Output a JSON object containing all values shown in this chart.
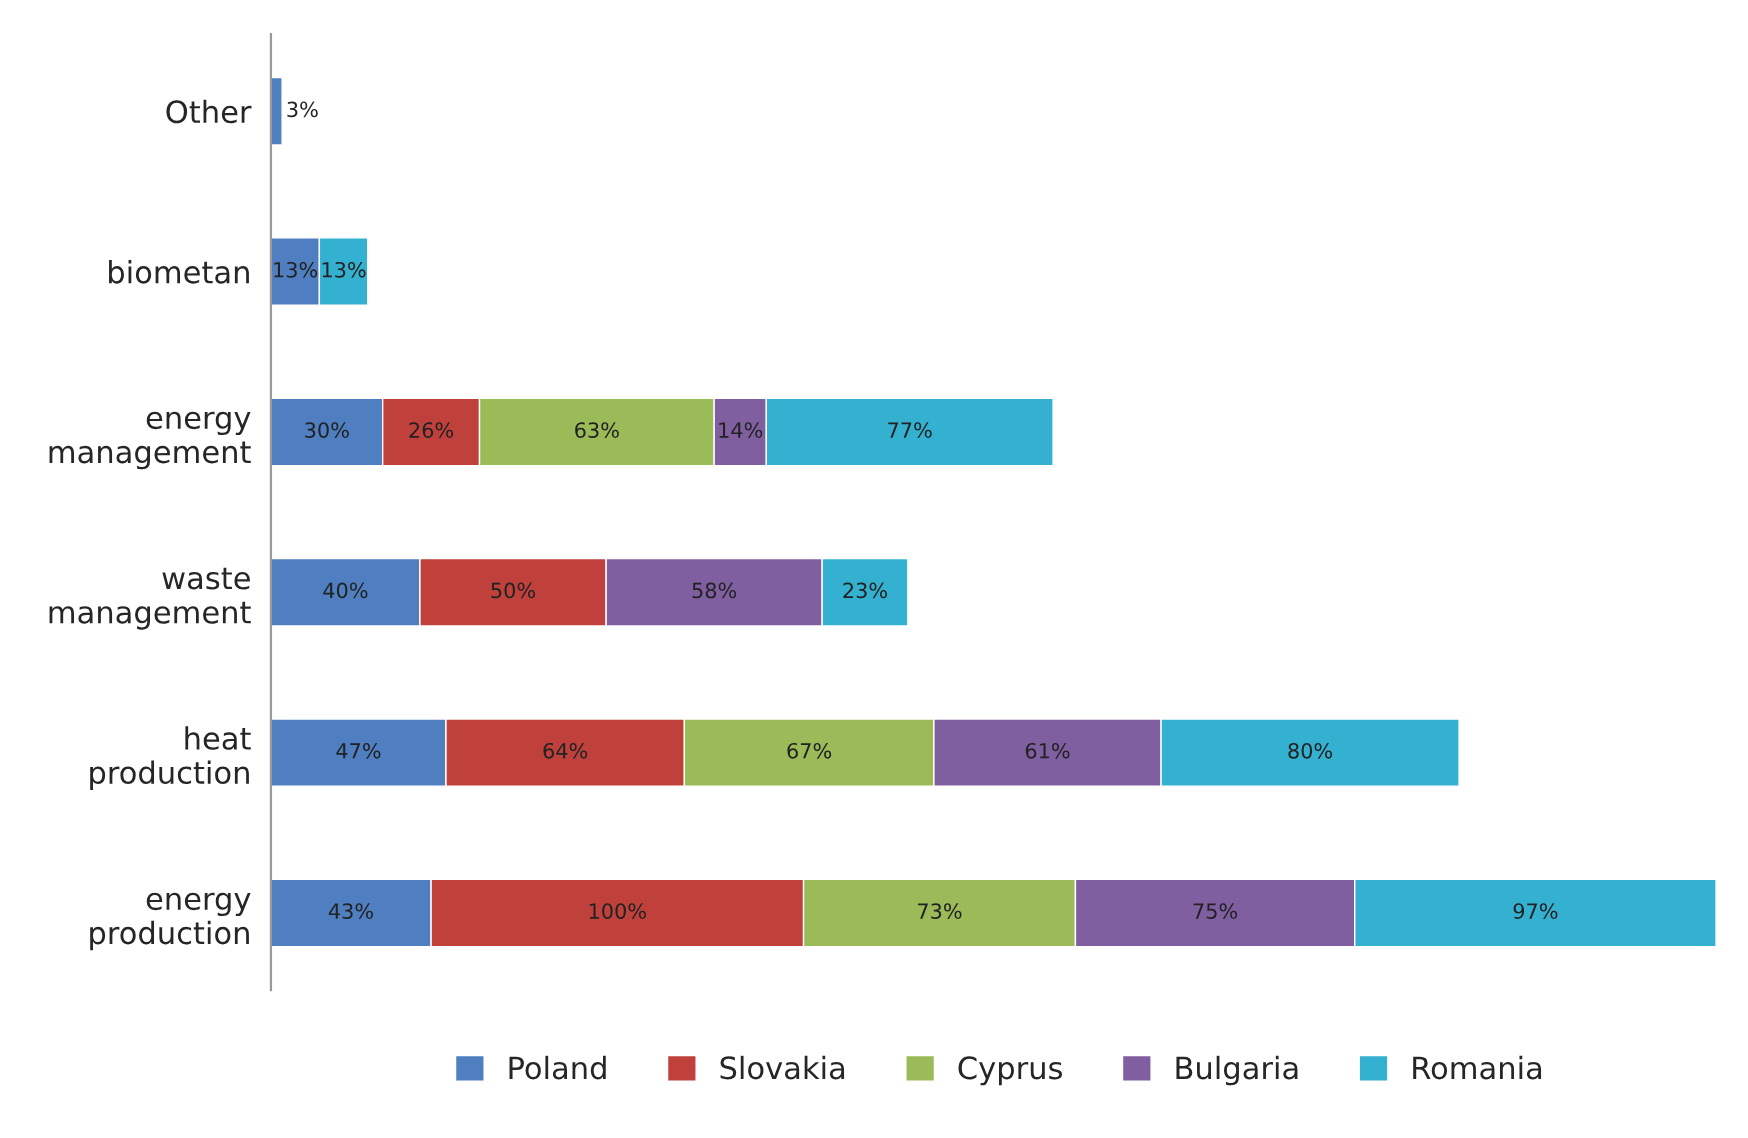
{
  "chart_data": {
    "type": "bar",
    "orientation": "horizontal",
    "stacked": true,
    "legend": "bottom",
    "grid": false,
    "categories": [
      "Other",
      "biometan",
      "energy\nmanagement",
      "waste\nmanagement",
      "heat\nproduction",
      "energy\nproduction"
    ],
    "series": [
      {
        "name": "Poland",
        "color": "#4f7fc0",
        "values": [
          3,
          13,
          30,
          40,
          47,
          43
        ],
        "value_labels": [
          "3%",
          "13%",
          "30%",
          "40%",
          "47%",
          "43%"
        ]
      },
      {
        "name": "Slovakia",
        "color": "#c0403c",
        "values": [
          null,
          null,
          26,
          50,
          64,
          100
        ],
        "value_labels": [
          null,
          null,
          "26%",
          "50%",
          "64%",
          "100%"
        ]
      },
      {
        "name": "Cyprus",
        "color": "#9bbb59",
        "values": [
          null,
          null,
          63,
          null,
          67,
          73
        ],
        "value_labels": [
          null,
          null,
          "63%",
          null,
          "67%",
          "73%"
        ]
      },
      {
        "name": "Bulgaria",
        "color": "#7f5fa0",
        "values": [
          null,
          null,
          14,
          58,
          61,
          75
        ],
        "value_labels": [
          null,
          null,
          "14%",
          "58%",
          "61%",
          "75%"
        ]
      },
      {
        "name": "Romania",
        "color": "#34b0d0",
        "values": [
          null,
          13,
          77,
          23,
          80,
          97
        ],
        "value_labels": [
          null,
          "13%",
          "77%",
          "23%",
          "80%",
          "97%"
        ]
      }
    ]
  }
}
